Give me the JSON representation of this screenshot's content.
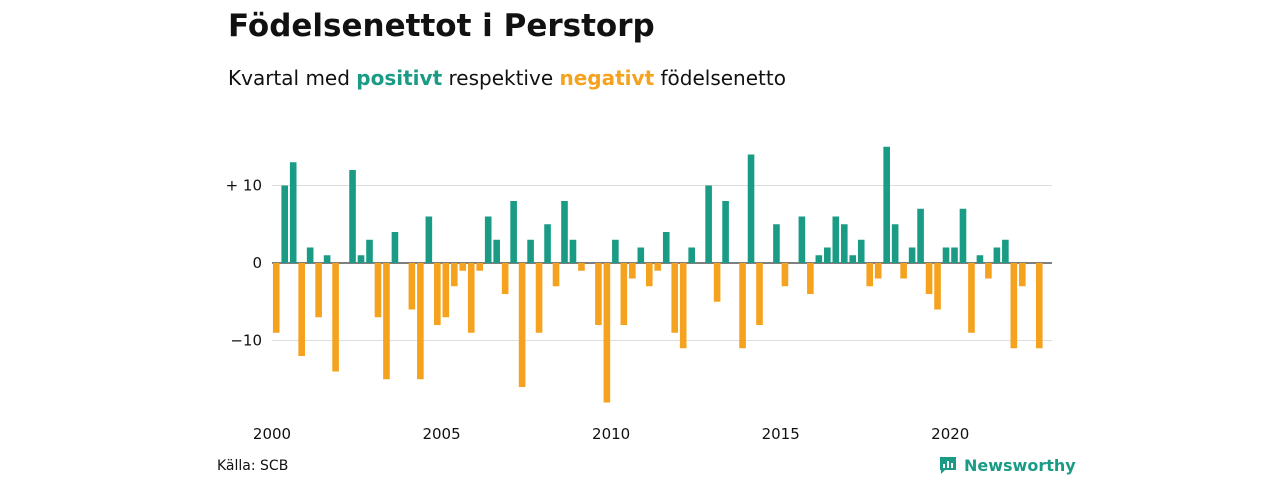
{
  "title": "Födelsenettot i Perstorp",
  "subtitle": {
    "prefix": "Kvartal med",
    "positive_word": "positivt",
    "middle": "respektive",
    "negative_word": "negativt",
    "suffix": "födelsenetto"
  },
  "source": "Källa: SCB",
  "brand": "Newsworthy",
  "colors": {
    "positive": "#1a9b86",
    "negative": "#f5a21f",
    "grid": "#dddddd"
  },
  "chart_data": {
    "type": "bar",
    "x_start": 2000,
    "period": "quarter",
    "values": [
      -9,
      10,
      13,
      -12,
      2,
      -7,
      1,
      -14,
      0,
      12,
      1,
      3,
      -7,
      -15,
      4,
      0,
      -6,
      -15,
      6,
      -8,
      -7,
      -3,
      -1,
      -9,
      -1,
      6,
      3,
      -4,
      8,
      -16,
      3,
      -9,
      5,
      -3,
      8,
      3,
      -1,
      0,
      -8,
      -18,
      3,
      -8,
      -2,
      2,
      -3,
      -1,
      4,
      -9,
      -11,
      2,
      0,
      10,
      -5,
      8,
      0,
      -11,
      14,
      -8,
      0,
      5,
      -3,
      0,
      6,
      -4,
      1,
      2,
      6,
      5,
      1,
      3,
      -3,
      -2,
      15,
      5,
      -2,
      2,
      7,
      -4,
      -6,
      2,
      2,
      7,
      -9,
      1,
      -2,
      2,
      3,
      -11,
      -3,
      0,
      -11
    ],
    "y_ticks": [
      {
        "value": 10,
        "label": "+ 10"
      },
      {
        "value": 0,
        "label": "0"
      },
      {
        "value": -10,
        "label": "−10"
      }
    ],
    "x_ticks": [
      {
        "value": 2000,
        "label": "2000"
      },
      {
        "value": 2005,
        "label": "2005"
      },
      {
        "value": 2010,
        "label": "2010"
      },
      {
        "value": 2015,
        "label": "2015"
      },
      {
        "value": 2020,
        "label": "2020"
      }
    ],
    "ylim": [
      -18,
      15
    ],
    "grid": true
  }
}
